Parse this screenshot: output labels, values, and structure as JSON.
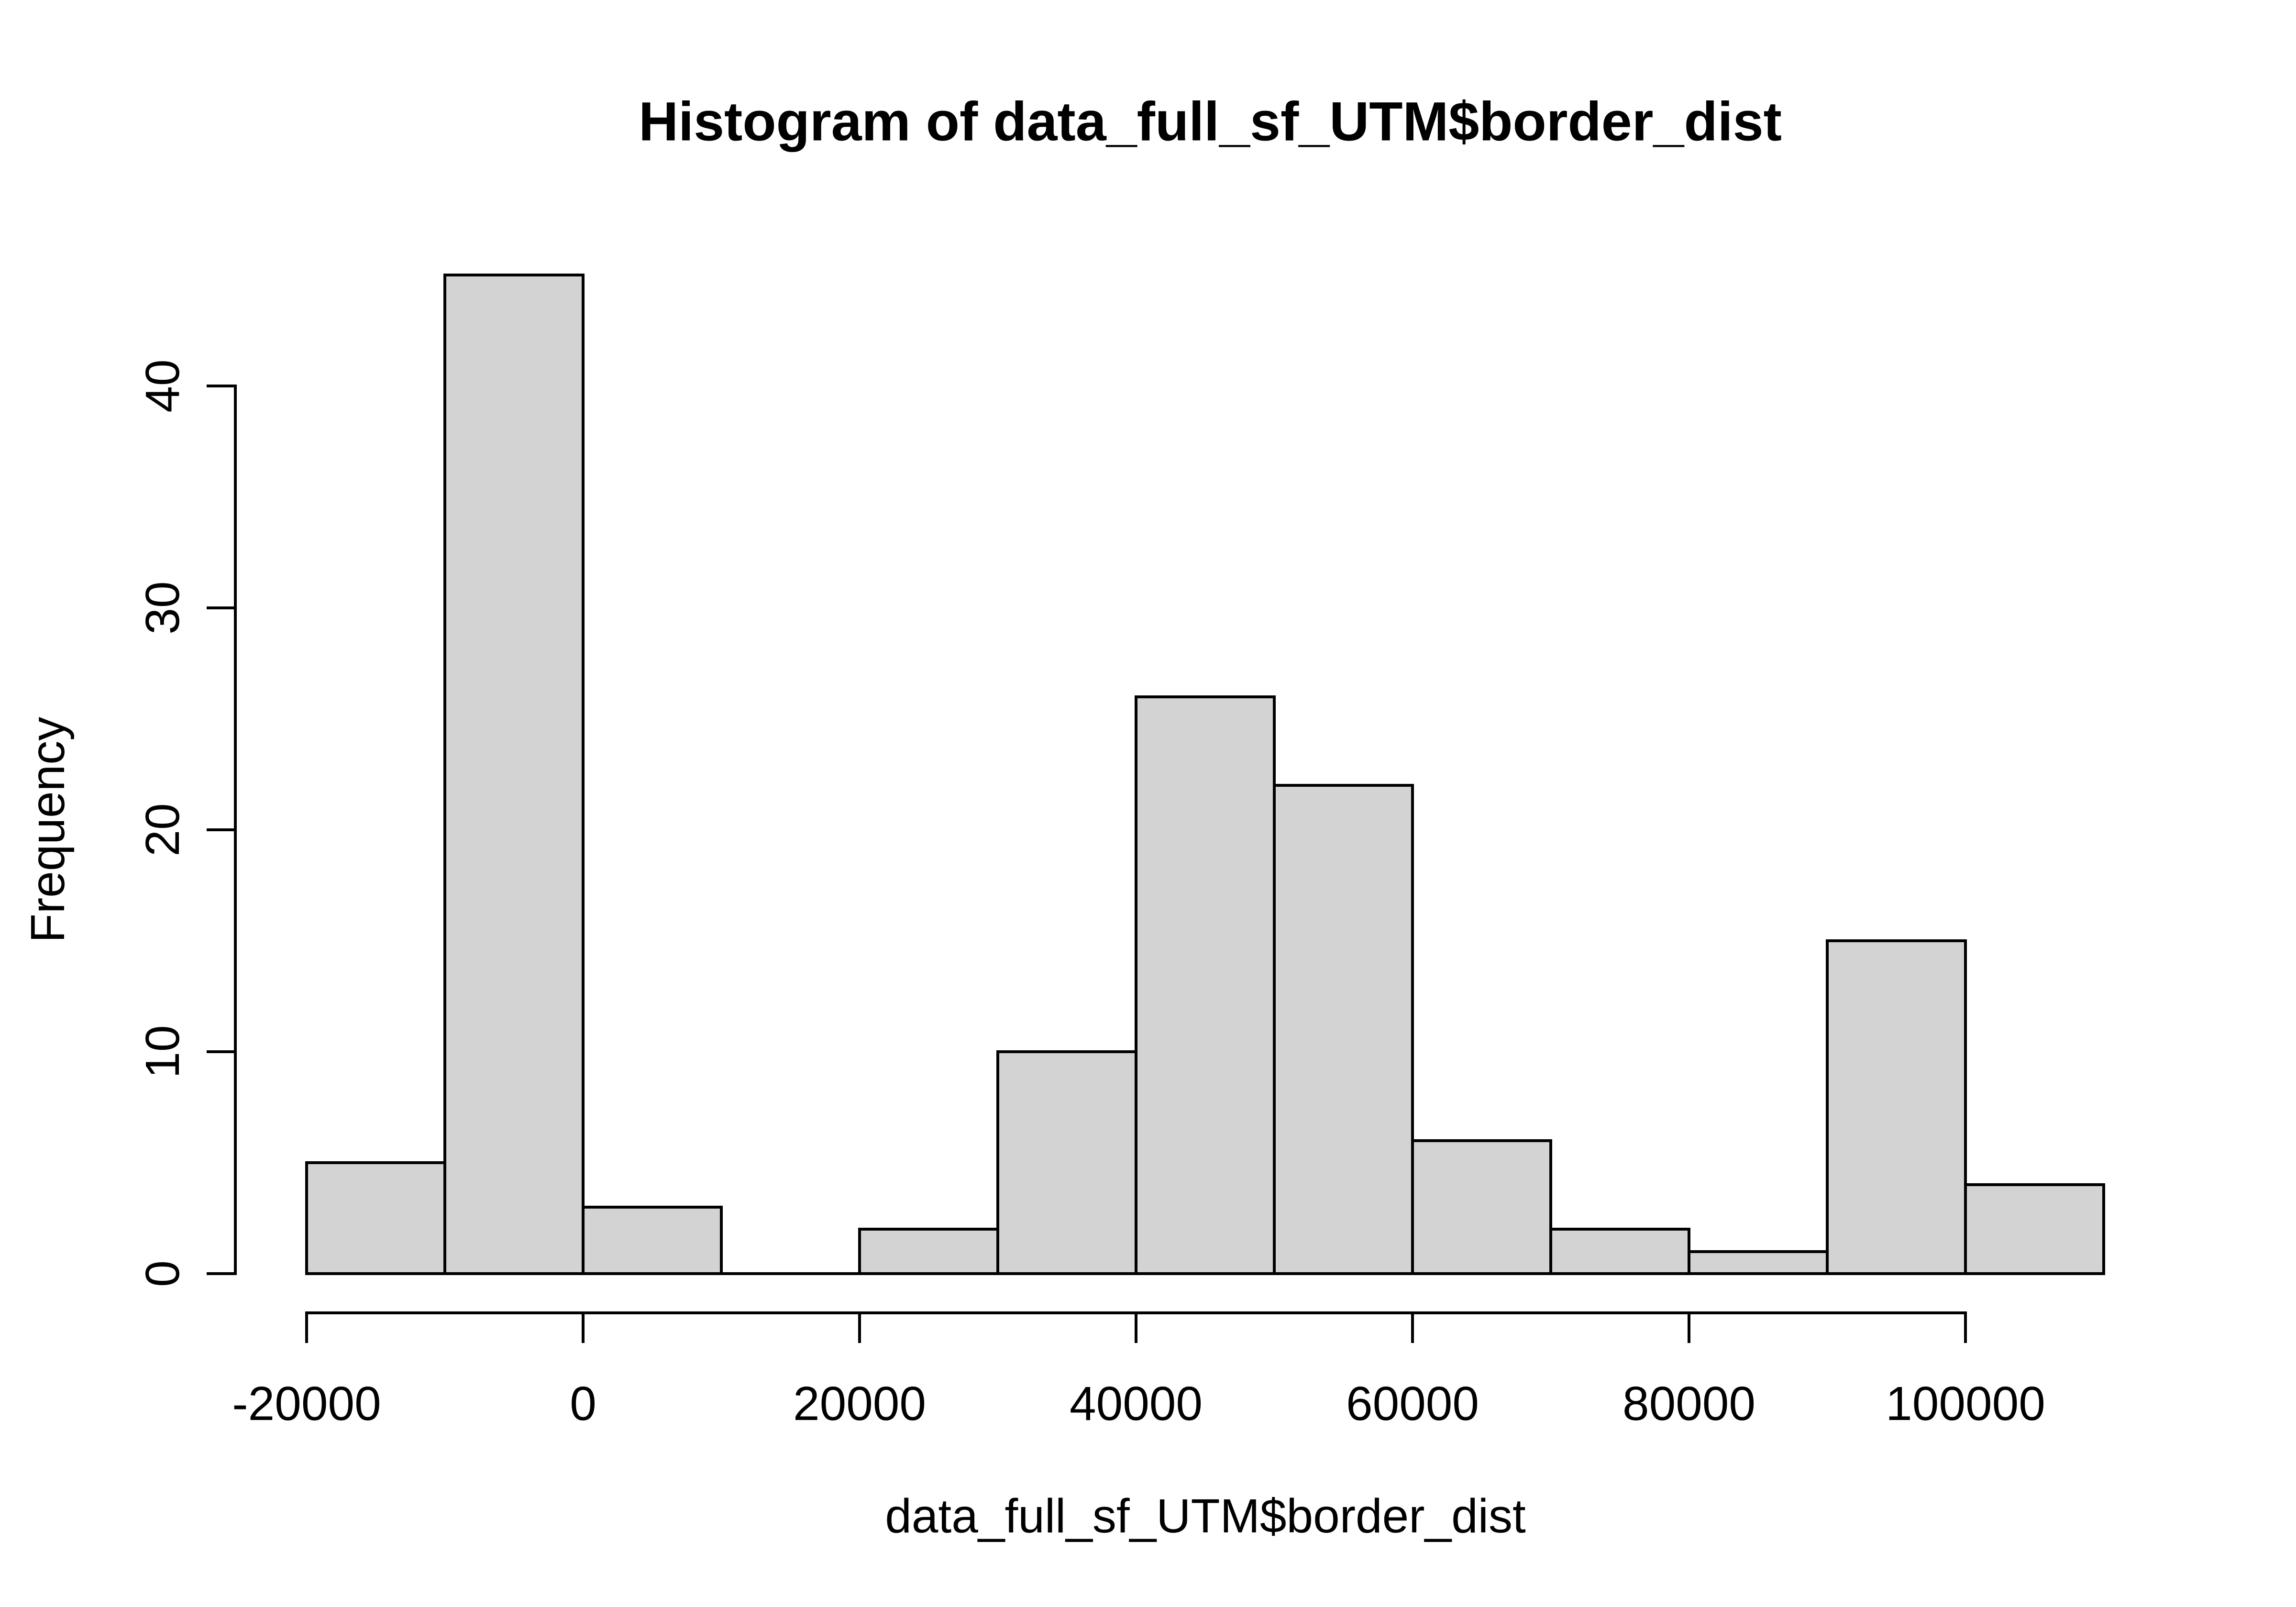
{
  "figure": {
    "title": "Histogram of data_full_sf_UTM$border_dist",
    "background_color": "#ffffff",
    "text_color": "#000000"
  },
  "chart_data": {
    "type": "bar",
    "subtype": "histogram",
    "title": "Histogram of data_full_sf_UTM$border_dist",
    "xlabel": "data_full_sf_UTM$border_dist",
    "ylabel": "Frequency",
    "bin_width": 10000,
    "breaks": [
      -20000,
      -10000,
      0,
      10000,
      20000,
      30000,
      40000,
      50000,
      60000,
      70000,
      80000,
      90000,
      100000,
      110000
    ],
    "counts": [
      5,
      45,
      3,
      0,
      2,
      10,
      26,
      22,
      6,
      2,
      1,
      15,
      4
    ],
    "x_ticks": [
      -20000,
      0,
      20000,
      40000,
      60000,
      80000,
      100000
    ],
    "x_tick_labels": [
      "-20000",
      "0",
      "20000",
      "40000",
      "60000",
      "80000",
      "100000"
    ],
    "y_ticks": [
      0,
      10,
      20,
      30,
      40
    ],
    "y_tick_labels": [
      "0",
      "10",
      "20",
      "30",
      "40"
    ],
    "xlim": [
      -20000,
      110000
    ],
    "ylim": [
      0,
      46.8
    ],
    "grid": false,
    "legend": false,
    "bar_fill": "#d3d3d3",
    "bar_border": "#000000",
    "axis_color": "#000000"
  }
}
